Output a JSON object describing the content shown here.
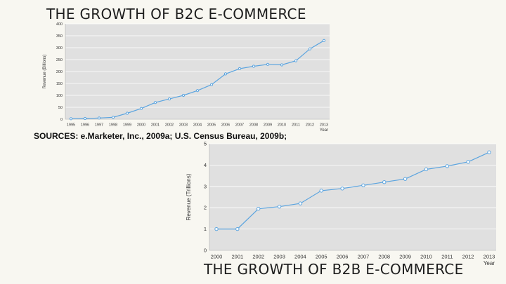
{
  "page": {
    "b2c_title": "THE GROWTH OF B2C E-COMMERCE",
    "sources": "SOURCES: e.Marketer, Inc., 2009a; U.S. Census Bureau, 2009b;",
    "b2b_title": "THE GROWTH OF B2B E-COMMERCE"
  },
  "colors": {
    "background": "#f8f7f1",
    "plot_background": "#e0e0e0",
    "series_line": "#5ba4df"
  },
  "chart_data": [
    {
      "id": "b2c",
      "type": "line",
      "title": "THE GROWTH OF B2C E-COMMERCE",
      "xlabel": "Year",
      "ylabel": "Revenue (Billions)",
      "categories": [
        "1995",
        "1996",
        "1997",
        "1998",
        "1999",
        "2000",
        "2001",
        "2002",
        "2003",
        "2004",
        "2005",
        "2006",
        "2007",
        "2008",
        "2009",
        "2010",
        "2011",
        "2012",
        "2013"
      ],
      "values": [
        2,
        3,
        5,
        8,
        25,
        45,
        70,
        85,
        100,
        120,
        145,
        190,
        212,
        222,
        230,
        228,
        245,
        295,
        330
      ],
      "yticks": [
        0,
        50,
        100,
        150,
        200,
        250,
        300,
        350,
        400
      ],
      "ylim": [
        0,
        400
      ],
      "grid": true
    },
    {
      "id": "b2b",
      "type": "line",
      "title": "THE GROWTH OF B2B E-COMMERCE",
      "xlabel": "Year",
      "ylabel": "Revenue (Trillions)",
      "categories": [
        "2000",
        "2001",
        "2002",
        "2003",
        "2004",
        "2005",
        "2006",
        "2007",
        "2008",
        "2009",
        "2010",
        "2011",
        "2012",
        "2013"
      ],
      "values": [
        1.0,
        1.0,
        1.95,
        2.05,
        2.2,
        2.8,
        2.9,
        3.05,
        3.2,
        3.35,
        3.8,
        3.95,
        4.15,
        4.6
      ],
      "yticks": [
        0,
        1,
        2,
        3,
        4,
        5
      ],
      "ylim": [
        0,
        5
      ],
      "grid": true
    }
  ]
}
